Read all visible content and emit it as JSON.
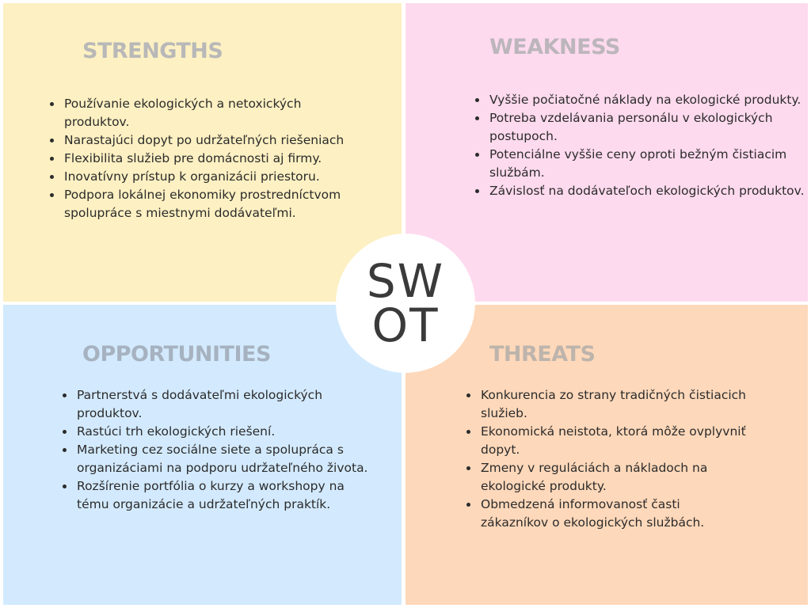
{
  "colors": {
    "strengths_bg": "#fdf0c2",
    "weakness_bg": "#fedaee",
    "opportunities_bg": "#d3eafe",
    "threats_bg": "#fed8ba",
    "strengths_title": "#b8b8b8",
    "weakness_title": "#bcb6bc",
    "opportunities_title": "#a6b2c0",
    "threats_title": "#bdb4ac",
    "center_text": "#3a3a3a",
    "center_bg": "#ffffff"
  },
  "center": {
    "line1": "SW",
    "line2": "OT"
  },
  "strengths": {
    "title": "STRENGTHS",
    "items": [
      "Používanie ekologických a netoxických produktov.",
      "Narastajúci dopyt po udržateľných riešeniach",
      "Flexibilita služieb pre domácnosti aj firmy.",
      "Inovatívny prístup k organizácii priestoru.",
      "Podpora lokálnej ekonomiky prostredníctvom spolupráce s miestnymi dodávateľmi."
    ]
  },
  "weakness": {
    "title": "WEAKNESS",
    "items": [
      "Vyššie počiatočné náklady na ekologické produkty.",
      "Potreba vzdelávania personálu v ekologických postupoch.",
      "Potenciálne vyššie ceny oproti bežným čistiacim službám.",
      "Závislosť na dodávateľoch ekologických produktov."
    ]
  },
  "opportunities": {
    "title": "OPPORTUNITIES",
    "items": [
      "Partnerstvá s dodávateľmi ekologických produktov.",
      "Rastúci trh ekologických riešení.",
      "Marketing cez sociálne siete a spolupráca s organizáciami na podporu udržateľného života.",
      "Rozšírenie portfólia o kurzy a workshopy na tému organizácie a udržateľných praktík."
    ]
  },
  "threats": {
    "title": "THREATS",
    "items": [
      "Konkurencia zo strany tradičných čistiacich služieb.",
      "Ekonomická neistota, ktorá môže ovplyvniť dopyt.",
      "Zmeny v reguláciách a nákladoch na ekologické produkty.",
      "Obmedzená informovanosť časti zákazníkov o ekologických službách."
    ]
  }
}
